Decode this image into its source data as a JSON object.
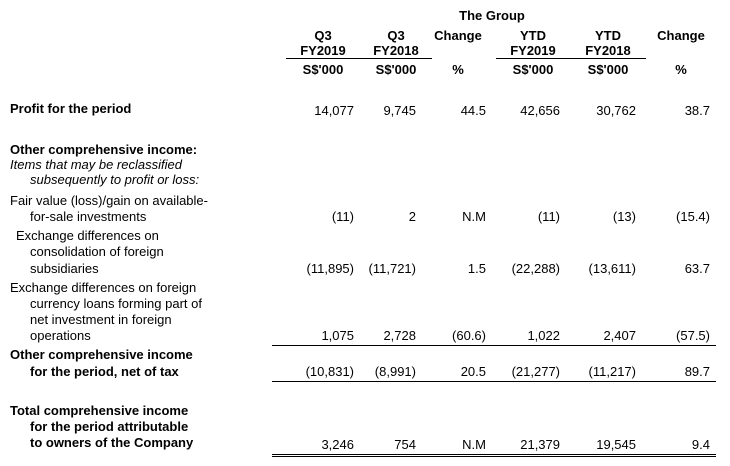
{
  "header": {
    "group_title": "The Group",
    "columns": [
      {
        "line1": "Q3",
        "line2": "FY2019",
        "unit": "S$'000"
      },
      {
        "line1": "Q3",
        "line2": "FY2018",
        "unit": "S$'000"
      },
      {
        "line1": "Change",
        "line2": "",
        "unit": "%"
      },
      {
        "line1": "YTD",
        "line2": "FY2019",
        "unit": "S$'000"
      },
      {
        "line1": "YTD",
        "line2": "FY2018",
        "unit": "S$'000"
      },
      {
        "line1": "Change",
        "line2": "",
        "unit": "%"
      }
    ]
  },
  "rows": {
    "profit": {
      "label": "Profit for the period",
      "values": [
        "14,077",
        "9,745",
        "44.5",
        "42,656",
        "30,762",
        "38.7"
      ]
    },
    "oci_heading": "Other comprehensive income:",
    "items_note_1": "Items that may be reclassified",
    "items_note_2": "subsequently to profit or loss:",
    "fair_value": {
      "label_1": "Fair value (loss)/gain on available-",
      "label_2": "for-sale investments",
      "values": [
        "(11)",
        "2",
        "N.M",
        "(11)",
        "(13)",
        "(15.4)"
      ]
    },
    "exch_consol": {
      "label_1": "Exchange differences on",
      "label_2": "consolidation of foreign",
      "label_3": "subsidiaries",
      "values": [
        "(11,895)",
        "(11,721)",
        "1.5",
        "(22,288)",
        "(13,611)",
        "63.7"
      ]
    },
    "exch_loans": {
      "label_1": "Exchange differences on foreign",
      "label_2": "currency loans forming part of",
      "label_3": "net investment in foreign",
      "label_4": "operations",
      "values": [
        "1,075",
        "2,728",
        "(60.6)",
        "1,022",
        "2,407",
        "(57.5)"
      ]
    },
    "oci_net": {
      "label_1": "Other comprehensive income",
      "label_2": "for the period, net of tax",
      "values": [
        "(10,831)",
        "(8,991)",
        "20.5",
        "(21,277)",
        "(11,217)",
        "89.7"
      ]
    },
    "total": {
      "label_1": "Total comprehensive income",
      "label_2": "for the period attributable",
      "label_3": "to owners of the Company",
      "values": [
        "3,246",
        "754",
        "N.M",
        "21,379",
        "19,545",
        "9.4"
      ]
    }
  }
}
